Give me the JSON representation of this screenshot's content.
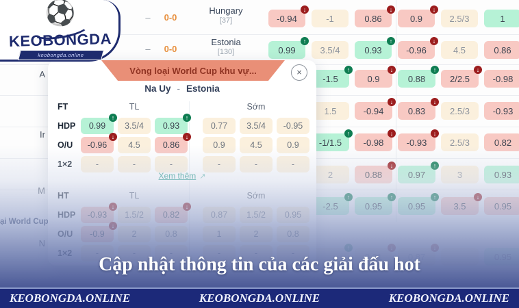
{
  "logo": {
    "title": "KEOBONGDA",
    "subtitle": "keobongda.online"
  },
  "colors": {
    "mint": "#b6f2d6",
    "cream": "#fbf0dd",
    "pink": "#f8c9c3",
    "salmon_tab": "#e98f77",
    "tab_text": "#8f3322",
    "badge_up": "#0f7d52",
    "badge_down": "#9c1d1e",
    "navy_footer": "#1c2979",
    "teal_link": "#2a9d8f",
    "score_orange": "#e89140"
  },
  "background_table": {
    "top_rows": [
      {
        "dash": "–",
        "score": "0-0",
        "team": "Hungary",
        "rank": "[37]",
        "odds": [
          {
            "v": "-0.94",
            "c": "pink",
            "b": "down"
          },
          {
            "v": "-1",
            "c": "cream"
          },
          {
            "v": "0.86",
            "c": "pink",
            "b": "down"
          },
          {
            "v": "0.9",
            "c": "pink",
            "b": "down"
          },
          {
            "v": "2.5/3",
            "c": "cream"
          },
          {
            "v": "1",
            "c": "mint"
          }
        ]
      },
      {
        "dash": "–",
        "score": "0-0",
        "team": "Estonia",
        "rank": "[130]",
        "odds": [
          {
            "v": "0.99",
            "c": "mint",
            "b": "up"
          },
          {
            "v": "3.5/4",
            "c": "cream"
          },
          {
            "v": "0.93",
            "c": "mint",
            "b": "up"
          },
          {
            "v": "-0.96",
            "c": "pink",
            "b": "down"
          },
          {
            "v": "4.5",
            "c": "cream"
          },
          {
            "v": "0.86",
            "c": "pink"
          }
        ]
      }
    ],
    "side_rows": [
      {
        "odds": [
          {
            "v": "-1.5",
            "c": "mint",
            "b": "up"
          },
          {
            "v": "0.9",
            "c": "pink",
            "b": "down"
          },
          {
            "v": "0.88",
            "c": "mint",
            "b": "up"
          },
          {
            "v": "2/2.5",
            "c": "pink",
            "b": "down"
          },
          {
            "v": "-0.98",
            "c": "pink"
          }
        ]
      },
      {
        "odds": [
          {
            "v": "1.5",
            "c": "cream"
          },
          {
            "v": "-0.94",
            "c": "pink",
            "b": "down"
          },
          {
            "v": "0.83",
            "c": "pink",
            "b": "down"
          },
          {
            "v": "2.5/3",
            "c": "cream"
          },
          {
            "v": "-0.93",
            "c": "pink"
          }
        ]
      },
      {
        "odds": [
          {
            "v": "-1/1.5",
            "c": "mint",
            "b": "up"
          },
          {
            "v": "-0.98",
            "c": "pink",
            "b": "down"
          },
          {
            "v": "-0.93",
            "c": "pink",
            "b": "down"
          },
          {
            "v": "2.5/3",
            "c": "cream"
          },
          {
            "v": "0.82",
            "c": "pink"
          }
        ]
      },
      {
        "odds": [
          {
            "v": "2",
            "c": "cream"
          },
          {
            "v": "0.88",
            "c": "pink",
            "b": "down"
          },
          {
            "v": "0.97",
            "c": "mint",
            "b": "up"
          },
          {
            "v": "3",
            "c": "cream"
          },
          {
            "v": "0.93",
            "c": "mint"
          }
        ]
      },
      {
        "odds": [
          {
            "v": "-2.5",
            "c": "mint",
            "b": "up"
          },
          {
            "v": "0.95",
            "c": "mint",
            "b": "up"
          },
          {
            "v": "0.95",
            "c": "mint",
            "b": "up"
          },
          {
            "v": "3.5",
            "c": "pink",
            "b": "down"
          },
          {
            "v": "0.95",
            "c": "pink"
          }
        ]
      }
    ],
    "faint_row": {
      "odds": [
        {
          "v": "",
          "c": "cream",
          "b": "up"
        },
        {
          "v": "0.91",
          "c": "cream",
          "b": "down"
        },
        {
          "v": "0.87",
          "c": "cream",
          "b": "down"
        },
        {
          "v": "",
          "c": "cream"
        },
        {
          "v": "0.95",
          "c": "mint"
        }
      ]
    },
    "left_fragments": {
      "f1": "A",
      "f2": "Ir",
      "f3": "M",
      "league": "ại World Cup",
      "f4": "N"
    }
  },
  "modal": {
    "header": "Vòng loại World Cup khu vự...",
    "close": "×",
    "match": {
      "home": "Na Uy",
      "separator": "-",
      "away": "Estonia"
    },
    "xem_them": "Xem thêm",
    "xem_them_arrow": "↗",
    "ft": {
      "label": "FT",
      "tl_label": "TL",
      "som_label": "Sớm",
      "rows": [
        {
          "label": "HDP",
          "tl": [
            {
              "v": "0.99",
              "c": "mint",
              "b": "up"
            },
            {
              "v": "3.5/4",
              "c": "cream"
            },
            {
              "v": "0.93",
              "c": "mint",
              "b": "up"
            }
          ],
          "som": [
            {
              "v": "0.77",
              "c": "cream"
            },
            {
              "v": "3.5/4",
              "c": "cream"
            },
            {
              "v": "-0.95",
              "c": "cream"
            }
          ]
        },
        {
          "label": "O/U",
          "tl": [
            {
              "v": "-0.96",
              "c": "pink",
              "b": "down"
            },
            {
              "v": "4.5",
              "c": "cream"
            },
            {
              "v": "0.86",
              "c": "pink",
              "b": "down"
            }
          ],
          "som": [
            {
              "v": "0.9",
              "c": "cream"
            },
            {
              "v": "4.5",
              "c": "cream"
            },
            {
              "v": "0.9",
              "c": "cream"
            }
          ]
        },
        {
          "label": "1×2",
          "tl": [
            {
              "v": "-",
              "c": "cream"
            },
            {
              "v": "-",
              "c": "cream"
            },
            {
              "v": "-",
              "c": "cream"
            }
          ],
          "som": [
            {
              "v": "-",
              "c": "cream"
            },
            {
              "v": "-",
              "c": "cream"
            },
            {
              "v": "-",
              "c": "cream"
            }
          ]
        }
      ]
    },
    "ht": {
      "label": "HT",
      "tl_label": "TL",
      "som_label": "Sớm",
      "rows": [
        {
          "label": "HDP",
          "tl": [
            {
              "v": "-0.93",
              "c": "pink",
              "b": "down"
            },
            {
              "v": "1.5/2",
              "c": "cream"
            },
            {
              "v": "0.82",
              "c": "pink",
              "b": "down"
            }
          ],
          "som": [
            {
              "v": "0.87",
              "c": "cream"
            },
            {
              "v": "1.5/2",
              "c": "cream"
            },
            {
              "v": "0.95",
              "c": "cream"
            }
          ]
        },
        {
          "label": "O/U",
          "tl": [
            {
              "v": "-0.9",
              "c": "pink",
              "b": "down"
            },
            {
              "v": "2",
              "c": "cream"
            },
            {
              "v": "0.8",
              "c": "cream"
            }
          ],
          "som": [
            {
              "v": "1",
              "c": "cream"
            },
            {
              "v": "2",
              "c": "cream"
            },
            {
              "v": "0.8",
              "c": "cream"
            }
          ]
        },
        {
          "label": "1×2",
          "tl": [
            {
              "v": "-",
              "c": "cream"
            },
            {
              "v": "-",
              "c": "cream"
            },
            {
              "v": "-",
              "c": "cream"
            }
          ],
          "som": [
            {
              "v": "-",
              "c": "cream"
            },
            {
              "v": "-",
              "c": "cream"
            },
            {
              "v": "-",
              "c": "cream"
            }
          ]
        }
      ]
    }
  },
  "banner": {
    "text": "Cập nhật thông tin của các giải đấu hot"
  },
  "footer": {
    "item1": "KEOBONGDA.ONLINE",
    "item2": "KEOBONGDA.ONLINE",
    "item3": "KEOBONGDA.ONLINE"
  }
}
